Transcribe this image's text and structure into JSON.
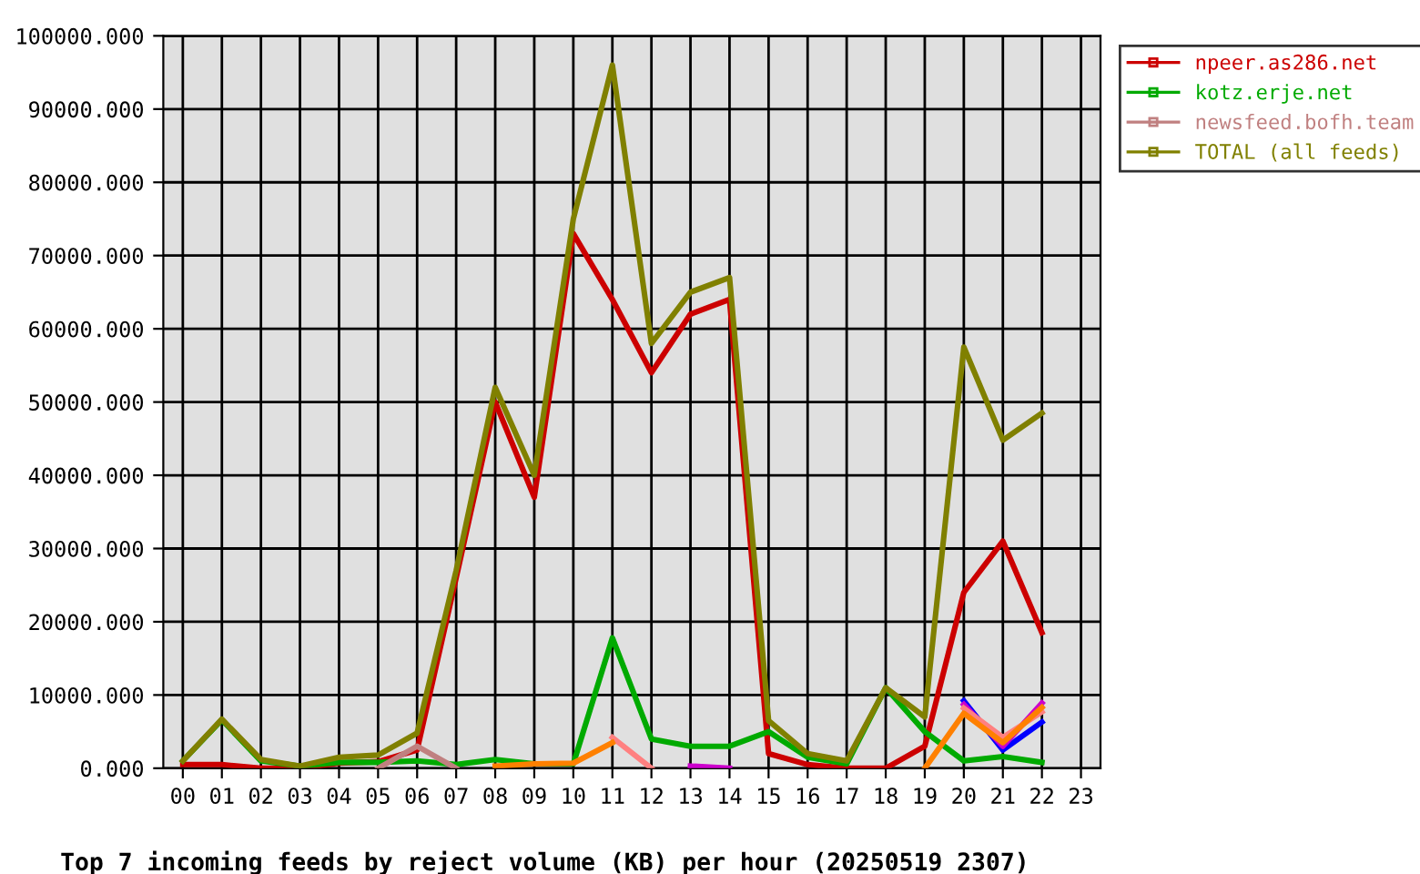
{
  "chart_data": {
    "type": "line",
    "title": "Top 7 incoming feeds by reject volume (KB) per hour (20250519 2307)",
    "categories": [
      "00",
      "01",
      "02",
      "03",
      "04",
      "05",
      "06",
      "07",
      "08",
      "09",
      "10",
      "11",
      "12",
      "13",
      "14",
      "15",
      "16",
      "17",
      "18",
      "19",
      "20",
      "21",
      "22",
      "23"
    ],
    "series": [
      {
        "name": "npeer.as286.net",
        "color": "#cc0000",
        "values": [
          500,
          500,
          0,
          0,
          700,
          900,
          2500,
          26000,
          50000,
          37000,
          73000,
          64000,
          54000,
          62000,
          64000,
          2000,
          500,
          0,
          0,
          3000,
          24000,
          31000,
          18500,
          null
        ]
      },
      {
        "name": "kotz.erje.net",
        "color": "#00aa00",
        "values": [
          1000,
          6600,
          1000,
          300,
          800,
          800,
          1000,
          500,
          1200,
          600,
          600,
          17800,
          4000,
          3000,
          3000,
          5000,
          1500,
          600,
          11000,
          5000,
          1000,
          1600,
          800,
          null
        ]
      },
      {
        "color": "#0000ff",
        "values": [
          null,
          null,
          null,
          null,
          null,
          null,
          null,
          null,
          null,
          null,
          null,
          null,
          null,
          null,
          null,
          null,
          null,
          null,
          null,
          null,
          9200,
          2500,
          6300,
          null
        ]
      },
      {
        "color": "#cc00cc",
        "values": [
          null,
          null,
          null,
          null,
          null,
          null,
          null,
          null,
          null,
          null,
          null,
          null,
          null,
          300,
          0,
          null,
          null,
          null,
          null,
          null,
          8700,
          3000,
          8900,
          null
        ]
      },
      {
        "color": "#ff8080",
        "values": [
          null,
          null,
          null,
          null,
          null,
          null,
          null,
          null,
          null,
          null,
          null,
          4200,
          0,
          null,
          null,
          null,
          null,
          null,
          null,
          null,
          8200,
          4200,
          7700,
          null
        ]
      },
      {
        "color": "#ff8000",
        "values": [
          null,
          null,
          null,
          null,
          null,
          null,
          null,
          null,
          300,
          600,
          700,
          3500,
          null,
          null,
          null,
          null,
          null,
          null,
          null,
          0,
          7500,
          3500,
          8300,
          null
        ]
      },
      {
        "name": "newsfeed.bofh.team",
        "color": "#c08080",
        "values": [
          null,
          null,
          null,
          null,
          null,
          0,
          3000,
          0,
          null,
          null,
          null,
          null,
          null,
          null,
          null,
          null,
          null,
          null,
          null,
          null,
          null,
          null,
          null,
          null
        ]
      },
      {
        "name": "TOTAL (all feeds)",
        "color": "#808000",
        "values": [
          1000,
          6700,
          1200,
          300,
          1500,
          1800,
          4800,
          27000,
          52000,
          40000,
          75000,
          96000,
          58000,
          65000,
          67000,
          6500,
          2000,
          1000,
          11000,
          7000,
          57500,
          44800,
          48500,
          null
        ]
      }
    ],
    "ylim": [
      0,
      100000
    ],
    "yticks": [
      {
        "value": 0,
        "label": "0.000"
      },
      {
        "value": 10000,
        "label": "10000.000"
      },
      {
        "value": 20000,
        "label": "20000.000"
      },
      {
        "value": 30000,
        "label": "30000.000"
      },
      {
        "value": 40000,
        "label": "40000.000"
      },
      {
        "value": 50000,
        "label": "50000.000"
      },
      {
        "value": 60000,
        "label": "60000.000"
      },
      {
        "value": 70000,
        "label": "70000.000"
      },
      {
        "value": 80000,
        "label": "80000.000"
      },
      {
        "value": 90000,
        "label": "90000.000"
      },
      {
        "value": 100000,
        "label": "100000.000"
      }
    ],
    "grid": true,
    "legend": "top right"
  }
}
